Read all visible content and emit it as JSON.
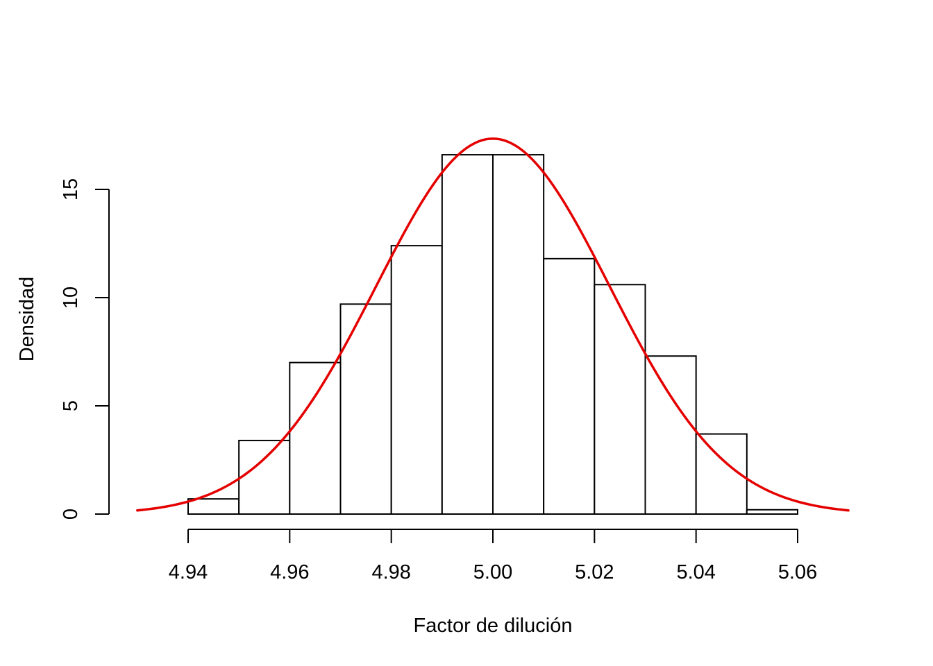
{
  "chart_data": {
    "type": "bar",
    "subtype": "histogram with density curve",
    "xlabel": "Factor de dilución",
    "ylabel": "Densidad",
    "xlim": [
      4.93,
      5.07
    ],
    "ylim": [
      0,
      17.4
    ],
    "x_ticks": [
      4.94,
      4.96,
      4.98,
      5.0,
      5.02,
      5.04,
      5.06
    ],
    "x_tick_labels": [
      "4.94",
      "4.96",
      "4.98",
      "5.00",
      "5.02",
      "5.04",
      "5.06"
    ],
    "y_ticks": [
      0,
      5,
      10,
      15
    ],
    "y_tick_labels": [
      "0",
      "5",
      "10",
      "15"
    ],
    "bins": [
      {
        "from": 4.94,
        "to": 4.95,
        "density": 0.7
      },
      {
        "from": 4.95,
        "to": 4.96,
        "density": 3.4
      },
      {
        "from": 4.96,
        "to": 4.97,
        "density": 7.0
      },
      {
        "from": 4.97,
        "to": 4.98,
        "density": 9.7
      },
      {
        "from": 4.98,
        "to": 4.99,
        "density": 12.4
      },
      {
        "from": 4.99,
        "to": 5.0,
        "density": 16.6
      },
      {
        "from": 5.0,
        "to": 5.01,
        "density": 16.6
      },
      {
        "from": 5.01,
        "to": 5.02,
        "density": 11.8
      },
      {
        "from": 5.02,
        "to": 5.03,
        "density": 10.6
      },
      {
        "from": 5.03,
        "to": 5.04,
        "density": 7.3
      },
      {
        "from": 5.04,
        "to": 5.05,
        "density": 3.7
      },
      {
        "from": 5.05,
        "to": 5.06,
        "density": 0.2
      }
    ],
    "curve": {
      "type": "normal density",
      "mean": 5.0,
      "sd": 0.023,
      "x_range": [
        4.93,
        5.07
      ],
      "color": "#e50000"
    },
    "grid": false,
    "legend": "none"
  }
}
